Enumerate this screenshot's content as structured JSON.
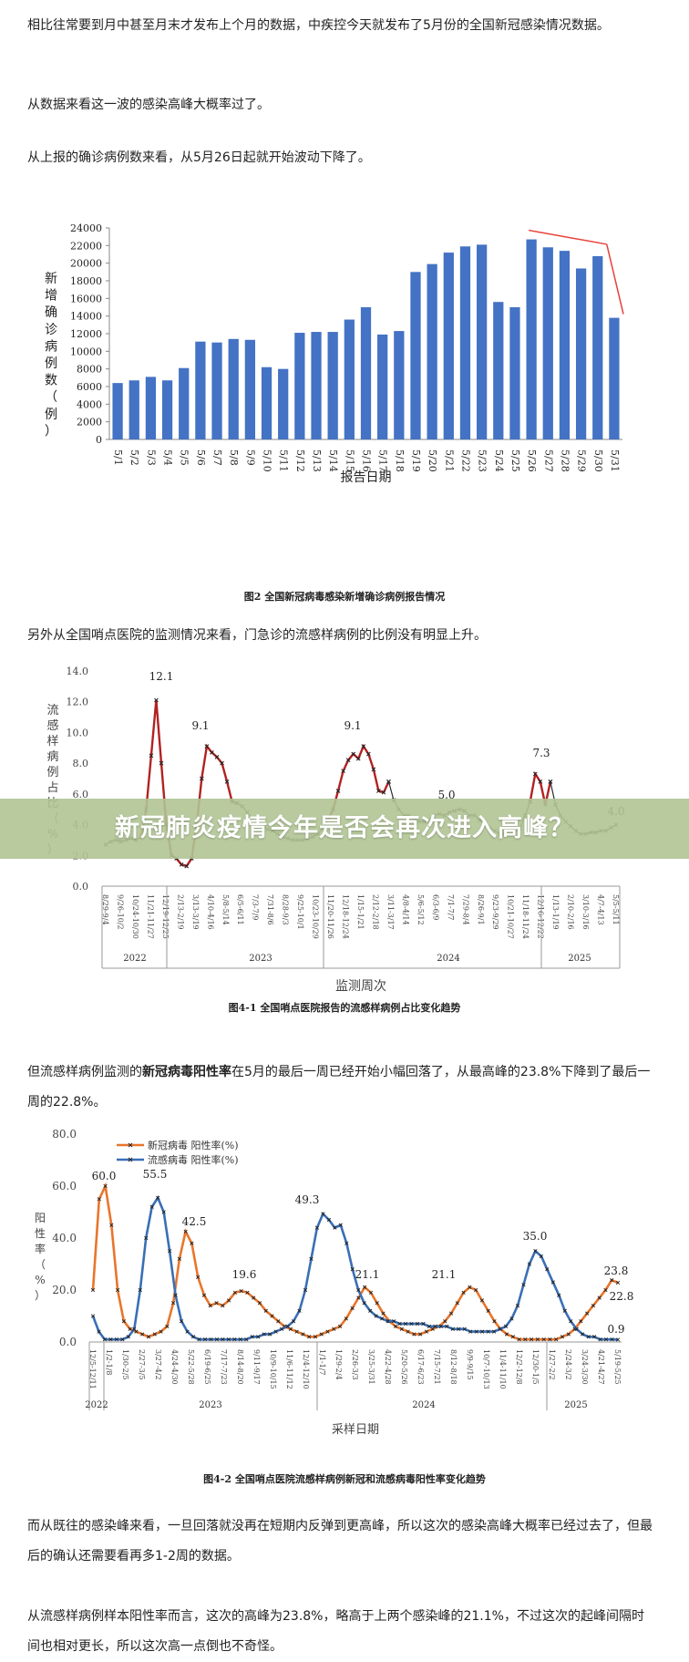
{
  "paragraphs": {
    "p1": "相比往常要到月中甚至月末才发布上个月的数据，中疾控今天就发布了5月份的全国新冠感染情况数据。",
    "p2": "从数据来看这一波的感染高峰大概率过了。",
    "p3": "从上报的确诊病例数来看，从5月26日起就开始波动下降了。",
    "p4": "另外从全国哨点医院的监测情况来看，门急诊的流感样病例的比例没有明显上升。",
    "p5_pre": "但流感样病例监测的",
    "p5_bold": "新冠病毒阳性率",
    "p5_post": "在5月的最后一周已经开始小幅回落了，从最高峰的23.8%下降到了最后一周的22.8%。",
    "p6": "而从既往的感染峰来看，一旦回落就没再在短期内反弹到更高峰，所以这次的感染高峰大概率已经过去了，但最后的确认还需要看再多1-2周的数据。",
    "p7": "从流感样病例样本阳性率而言，这次的高峰为23.8%，略高于上两个感染峰的21.1%，不过这次的起峰间隔时间也相对更长，所以这次高一点倒也不奇怪。"
  },
  "banner": {
    "title": "新冠肺炎疫情今年是否会再次进入高峰？"
  },
  "figures": {
    "fig1_caption": "图2 全国新冠病毒感染新增确诊病例报告情况",
    "fig2_caption": "图4-1 全国哨点医院报告的流感样病例占比变化趋势",
    "fig3_caption": "图4-2 全国哨点医院流感样病例新冠和流感病毒阳性率变化趋势"
  },
  "chart_data": [
    {
      "type": "bar",
      "title": "",
      "xlabel": "报告日期",
      "ylabel": "新增确诊病例数（例）",
      "ylim": [
        0,
        24000
      ],
      "yticks": [
        0,
        2000,
        4000,
        6000,
        8000,
        10000,
        12000,
        14000,
        16000,
        18000,
        20000,
        22000,
        24000
      ],
      "categories": [
        "5/1",
        "5/2",
        "5/3",
        "5/4",
        "5/5",
        "5/6",
        "5/7",
        "5/8",
        "5/9",
        "5/10",
        "5/11",
        "5/12",
        "5/13",
        "5/14",
        "5/15",
        "5/16",
        "5/17",
        "5/18",
        "5/19",
        "5/20",
        "5/21",
        "5/22",
        "5/23",
        "5/24",
        "5/25",
        "5/26",
        "5/27",
        "5/28",
        "5/29",
        "5/30",
        "5/31"
      ],
      "values": [
        6400,
        6700,
        7100,
        6700,
        8100,
        11100,
        11000,
        11400,
        11300,
        8200,
        8000,
        12100,
        12200,
        12200,
        13600,
        15000,
        11900,
        12300,
        19000,
        19900,
        21200,
        21900,
        22100,
        15600,
        15000,
        22700,
        21800,
        21400,
        19400,
        20800,
        13800
      ],
      "bar_color": "#4472C4",
      "annotation_color": "#E8413A"
    },
    {
      "type": "line",
      "title": "",
      "xlabel": "监测周次",
      "ylabel": "流感样病例占比（%）",
      "ylim": [
        0,
        14
      ],
      "yticks": [
        "0.0",
        "2.0",
        "4.0",
        "6.0",
        "8.0",
        "10.0",
        "12.0",
        "14.0"
      ],
      "x_tick_labels": [
        "8/29-9/4",
        "9/26-10/2",
        "10/24-10/30",
        "11/21-11/27",
        "12/19-12/25",
        "2/13-2/19",
        "3/13-3/19",
        "4/10-4/16",
        "5/8-5/14",
        "6/5-6/11",
        "7/3-7/9",
        "7/31-8/6",
        "8/28-9/3",
        "9/25-10/1",
        "10/23-10/29",
        "11/20-11/26",
        "12/18-12/24",
        "1/15-1/21",
        "2/12-2/18",
        "3/11-3/17",
        "4/8-4/14",
        "5/6-5/12",
        "6/3-6/9",
        "7/1-7/7",
        "7/29-8/4",
        "8/26-9/1",
        "9/23-9/29",
        "10/21-10/27",
        "11/18-11/24",
        "12/16-12/22",
        "1/13-1/19",
        "2/10-2/16",
        "3/10-3/16",
        "4/7-4/13",
        "5/5-5/11"
      ],
      "year_labels": [
        "2022",
        "2023",
        "2024",
        "2025"
      ],
      "annotations": [
        "12.1",
        "9.1",
        "9.1",
        "5.0",
        "7.3",
        "4.0"
      ],
      "series": [
        {
          "color": "#2B2B2B",
          "values": [
            2.7,
            2.9,
            3.0,
            2.9,
            3.0,
            3.1,
            3.0,
            3.2
          ]
        },
        {
          "color": "#B22222",
          "values": [
            3.2,
            5.0,
            8.5,
            12.1,
            8.0,
            4.0,
            2.0,
            1.8,
            1.4,
            1.3,
            1.8,
            4.0,
            7.0,
            9.1,
            8.7,
            8.4,
            8.0,
            6.8,
            5.5,
            5.4
          ]
        },
        {
          "color": "#2B2B2B",
          "values": [
            5.4,
            5.2,
            4.8,
            4.4,
            4.1,
            3.9,
            3.7,
            3.6,
            3.4,
            3.2,
            3.1,
            3.0,
            3.0,
            3.0,
            3.1,
            3.2,
            3.4,
            3.8,
            4.3
          ]
        },
        {
          "color": "#B22222",
          "values": [
            4.3,
            5.0,
            6.2,
            7.5,
            8.2,
            8.6,
            8.3,
            9.1,
            8.6,
            7.6,
            6.2,
            6.1,
            6.8
          ]
        },
        {
          "color": "#2B2B2B",
          "values": [
            6.8,
            5.6,
            5.0,
            4.6,
            4.6,
            4.4,
            4.2,
            4.2,
            4.3,
            4.6,
            4.7,
            4.6,
            4.8,
            4.9,
            5.0,
            4.9,
            4.6,
            4.6,
            4.3,
            4.0,
            3.8,
            3.6,
            3.4,
            3.4,
            3.4,
            3.6,
            3.8,
            4.6,
            5.5
          ]
        },
        {
          "color": "#B22222",
          "values": [
            5.5,
            7.3,
            6.8,
            5.3,
            6.8
          ]
        },
        {
          "color": "#2B2B2B",
          "values": [
            6.8,
            5.3,
            4.6,
            4.2,
            3.9,
            3.6,
            3.4,
            3.4,
            3.5,
            3.5,
            3.6,
            3.6,
            3.8,
            4.0
          ]
        }
      ]
    },
    {
      "type": "line",
      "title": "",
      "xlabel": "采样日期",
      "ylabel": "阳性率（%）",
      "ylim": [
        0,
        80
      ],
      "yticks": [
        "0.0",
        "20.0",
        "40.0",
        "60.0",
        "80.0"
      ],
      "x_tick_labels": [
        "12/5-12/11",
        "1/2-1/8",
        "1/30-2/5",
        "2/27-3/5",
        "3/27-4/2",
        "4/24-4/30",
        "5/22-5/28",
        "6/19-6/25",
        "7/17-7/23",
        "8/14-8/20",
        "9/11-9/17",
        "10/9-10/15",
        "11/6-11/12",
        "12/4-12/10",
        "1/1-1/7",
        "1/29-2/4",
        "2/26-3/3",
        "3/25-3/31",
        "4/22-4/28",
        "5/20-5/26",
        "6/17-6/23",
        "7/15-7/21",
        "8/12-8/18",
        "9/9-9/15",
        "10/7-10/13",
        "11/4-11/10",
        "12/2-12/8",
        "12/30-1/5",
        "1/27-2/2",
        "2/24-3/2",
        "3/24-3/30",
        "4/21-4/27",
        "5/19-5/25"
      ],
      "year_labels": [
        "2022",
        "2023",
        "2024",
        "2025"
      ],
      "annotations": [
        "60.0",
        "55.5",
        "42.5",
        "19.6",
        "49.3",
        "21.1",
        "21.1",
        "35.0",
        "23.8",
        "22.8",
        "0.9"
      ],
      "series": [
        {
          "name": "新冠病毒 阳性率(%)",
          "color": "#E8762C",
          "values": [
            20,
            55,
            60,
            45,
            20,
            8,
            5,
            4,
            3,
            2,
            3,
            4,
            6,
            15,
            32,
            42.5,
            38,
            25,
            18,
            14,
            15,
            14,
            16,
            19,
            19.6,
            19,
            17,
            15,
            12,
            10,
            8,
            6,
            5,
            4,
            3,
            2,
            2,
            3,
            4,
            5,
            6,
            9,
            13,
            17,
            21.1,
            19,
            15,
            11,
            8,
            6,
            5,
            4,
            3,
            3,
            4,
            5,
            6,
            8,
            11,
            15,
            19,
            21.1,
            20,
            16,
            12,
            8,
            5,
            3,
            2,
            1,
            1,
            1,
            1,
            1,
            1,
            1,
            2,
            3,
            5,
            8,
            11,
            14,
            17,
            20,
            23.8,
            22.8
          ]
        },
        {
          "name": "流感病毒 阳性率(%)",
          "color": "#3A6FB5",
          "values": [
            10,
            4,
            1,
            1,
            1,
            1,
            2,
            5,
            20,
            40,
            52,
            55.5,
            50,
            35,
            18,
            8,
            4,
            2,
            1,
            1,
            1,
            1,
            1,
            1,
            1,
            1,
            1,
            2,
            2,
            3,
            3,
            4,
            5,
            6,
            8,
            12,
            20,
            32,
            44,
            49.3,
            47,
            44,
            45,
            38,
            28,
            20,
            15,
            12,
            10,
            9,
            8,
            8,
            7,
            7,
            7,
            7,
            7,
            6,
            6,
            6,
            6,
            5,
            5,
            5,
            4,
            4,
            4,
            4,
            4,
            5,
            6,
            9,
            14,
            22,
            30,
            35,
            33,
            28,
            23,
            18,
            12,
            8,
            5,
            3,
            2,
            2,
            1,
            1,
            1,
            0.9
          ]
        }
      ]
    }
  ]
}
